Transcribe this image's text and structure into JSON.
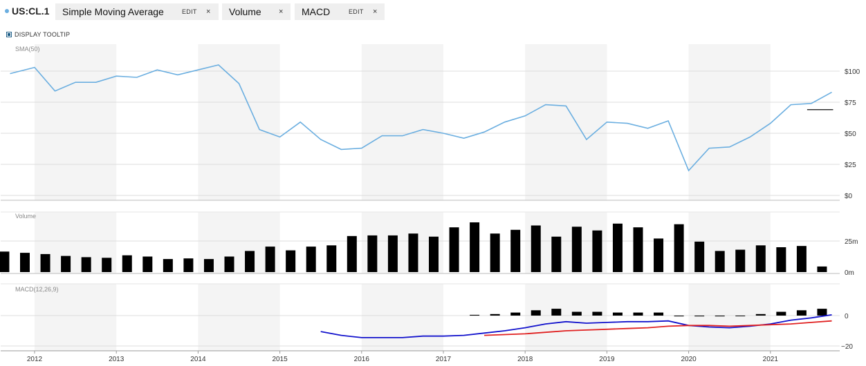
{
  "toolbar": {
    "symbol": "US:CL.1",
    "chips": [
      {
        "label": "Simple Moving Average",
        "edit": "EDIT",
        "close": "×"
      },
      {
        "label": "Volume",
        "close": "×"
      },
      {
        "label": "MACD",
        "edit": "EDIT",
        "close": "×"
      }
    ]
  },
  "tooltip_toggle": {
    "label": "DISPLAY TOOLTIP",
    "checked": true
  },
  "colors": {
    "sma": "#6aaee0",
    "bars": "#000000",
    "macd": "#1111cc",
    "signal": "#e02020",
    "band": "#f4f4f4",
    "grid": "#dddddd"
  },
  "chart_data": [
    {
      "type": "line",
      "title": "SMA(50)",
      "x_tick_labels": [
        "2012",
        "2013",
        "2014",
        "2015",
        "2016",
        "2017",
        "2018",
        "2019",
        "2020",
        "2021"
      ],
      "y_tick_labels": [
        "$100",
        "$75",
        "$50",
        "$25",
        "$0"
      ],
      "ylim": [
        0,
        105
      ],
      "series": [
        {
          "x": [
            2011.7,
            2012.0,
            2012.25,
            2012.5,
            2012.75,
            2013.0,
            2013.25,
            2013.5,
            2013.75,
            2014.0,
            2014.25,
            2014.5,
            2014.75,
            2015.0,
            2015.25,
            2015.5,
            2015.75,
            2016.0,
            2016.25,
            2016.5,
            2016.75,
            2017.0,
            2017.25,
            2017.5,
            2017.75,
            2018.0,
            2018.25,
            2018.5,
            2018.75,
            2019.0,
            2019.25,
            2019.5,
            2019.75,
            2020.0,
            2020.25,
            2020.5,
            2020.75,
            2021.0,
            2021.25,
            2021.5,
            2021.75
          ],
          "values": [
            98,
            103,
            84,
            91,
            91,
            96,
            95,
            101,
            97,
            101,
            105,
            90,
            53,
            47,
            59,
            45,
            37,
            38,
            48,
            48,
            53,
            50,
            46,
            51,
            59,
            64,
            73,
            72,
            45,
            59,
            58,
            54,
            60,
            20,
            38,
            39,
            47,
            58,
            73,
            74,
            83
          ]
        }
      ],
      "annotation": {
        "x": [
          2021.5,
          2021.75
        ],
        "y": [
          69,
          69
        ]
      }
    },
    {
      "type": "bar",
      "title": "Volume",
      "y_tick_labels": [
        "25m",
        "0m"
      ],
      "ylim": [
        0,
        40
      ],
      "x": [
        2011.75,
        2012.0,
        2012.25,
        2012.5,
        2012.75,
        2013.0,
        2013.25,
        2013.5,
        2013.75,
        2014.0,
        2014.25,
        2014.5,
        2014.75,
        2015.0,
        2015.25,
        2015.5,
        2015.75,
        2016.0,
        2016.25,
        2016.5,
        2016.75,
        2017.0,
        2017.25,
        2017.5,
        2017.75,
        2018.0,
        2018.25,
        2018.5,
        2018.75,
        2019.0,
        2019.25,
        2019.5,
        2019.75,
        2020.0,
        2020.25,
        2020.5,
        2020.75,
        2021.0,
        2021.25,
        2021.5,
        2021.75
      ],
      "values": [
        16.5,
        15.5,
        14.5,
        13,
        12,
        11.5,
        13.5,
        12.5,
        10.5,
        11,
        10.5,
        12.5,
        17,
        20.5,
        17.5,
        20.5,
        21.5,
        29,
        29.5,
        29.5,
        31,
        28.5,
        36,
        40,
        31,
        34,
        37.5,
        28.5,
        36.5,
        33.5,
        39,
        36,
        27,
        38.5,
        24.5,
        17,
        18,
        21.5,
        20,
        21,
        4.5
      ]
    },
    {
      "type": "line",
      "title": "MACD(12,26,9)",
      "y_tick_labels": [
        "0",
        "−20"
      ],
      "ylim": [
        -22,
        2
      ],
      "macd_x": [
        2015.5,
        2015.75,
        2016.0,
        2016.25,
        2016.5,
        2016.75,
        2017.0,
        2017.25,
        2017.5,
        2017.75,
        2018.0,
        2018.25,
        2018.5,
        2018.75,
        2019.0,
        2019.25,
        2019.5,
        2019.75,
        2020.0,
        2020.25,
        2020.5,
        2020.75,
        2021.0,
        2021.25,
        2021.5,
        2021.75
      ],
      "macd": [
        -10.5,
        -13,
        -14.5,
        -14.5,
        -14.5,
        -13.5,
        -13.5,
        -13,
        -11.5,
        -10,
        -8,
        -5.5,
        -4,
        -5,
        -4.5,
        -4,
        -4,
        -3.5,
        -6.5,
        -7.5,
        -8,
        -7,
        -5.5,
        -3,
        -1.5,
        0.5
      ],
      "signal_x": [
        2017.5,
        2017.75,
        2018.0,
        2018.25,
        2018.5,
        2018.75,
        2019.0,
        2019.25,
        2019.5,
        2019.75,
        2020.0,
        2020.25,
        2020.5,
        2020.75,
        2021.0,
        2021.25,
        2021.5,
        2021.75
      ],
      "signal": [
        -13,
        -12.5,
        -12,
        -11,
        -10,
        -9.5,
        -9,
        -8.5,
        -8,
        -7,
        -6.5,
        -6.5,
        -7,
        -6.5,
        -6,
        -5.5,
        -4.5,
        -3.5
      ],
      "hist_x": [
        2017.5,
        2017.75,
        2018.0,
        2018.25,
        2018.5,
        2018.75,
        2019.0,
        2019.25,
        2019.5,
        2019.75,
        2020.0,
        2020.25,
        2020.5,
        2020.75,
        2021.0,
        2021.25,
        2021.5,
        2021.75
      ],
      "hist": [
        0.5,
        1,
        2,
        3.5,
        4.5,
        2.5,
        2.5,
        2,
        2,
        2,
        -0.5,
        -0.5,
        -0.5,
        0,
        1,
        2.5,
        3.5,
        4.5
      ]
    }
  ]
}
